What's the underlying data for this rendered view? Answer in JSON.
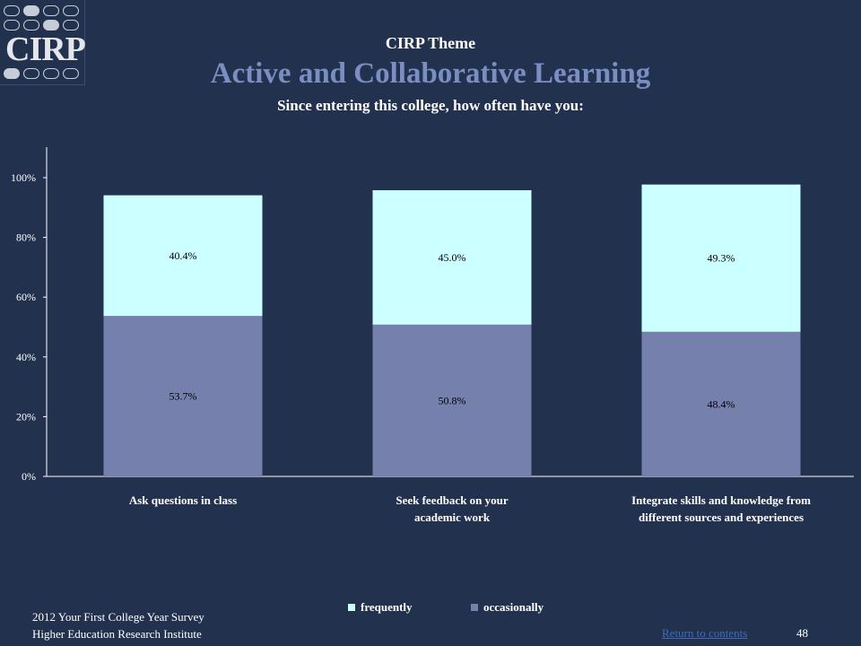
{
  "logo": {
    "text": "CIRP"
  },
  "header": {
    "theme": "CIRP Theme",
    "title": "Active and Collaborative Learning",
    "subtitle": "Since entering this college, how often have you:"
  },
  "colors": {
    "frequently": "#ccffff",
    "occasionally": "#7580ad",
    "title": "#7b8ec1",
    "background": "#22324e",
    "link": "#3e6cb8"
  },
  "chart_data": {
    "type": "bar",
    "stacked": true,
    "categories": [
      "Ask questions in class",
      "Seek feedback on your academic work",
      "Integrate skills and knowledge from different sources and experiences"
    ],
    "category_label_lines": [
      [
        "Ask questions in class"
      ],
      [
        "Seek feedback on your",
        "academic work"
      ],
      [
        "Integrate skills and knowledge from",
        "different sources and experiences"
      ]
    ],
    "series": [
      {
        "name": "occasionally",
        "values": [
          53.7,
          50.8,
          48.4
        ]
      },
      {
        "name": "frequently",
        "values": [
          40.4,
          45.0,
          49.3
        ]
      }
    ],
    "data_labels": {
      "occasionally": [
        "53.7%",
        "50.8%",
        "48.4%"
      ],
      "frequently": [
        "40.4%",
        "45.0%",
        "49.3%"
      ]
    },
    "ylim": [
      0,
      100
    ],
    "yticks": [
      0,
      20,
      40,
      60,
      80,
      100
    ],
    "ytick_labels": [
      "0%",
      "20%",
      "40%",
      "60%",
      "80%",
      "100%"
    ],
    "legend": {
      "position": "bottom",
      "entries": [
        "frequently",
        "occasionally"
      ]
    }
  },
  "footer": {
    "line1": "2012 Your First College Year Survey",
    "line2": "Higher Education Research Institute",
    "return_link": "Return to contents",
    "page_number": "48"
  }
}
